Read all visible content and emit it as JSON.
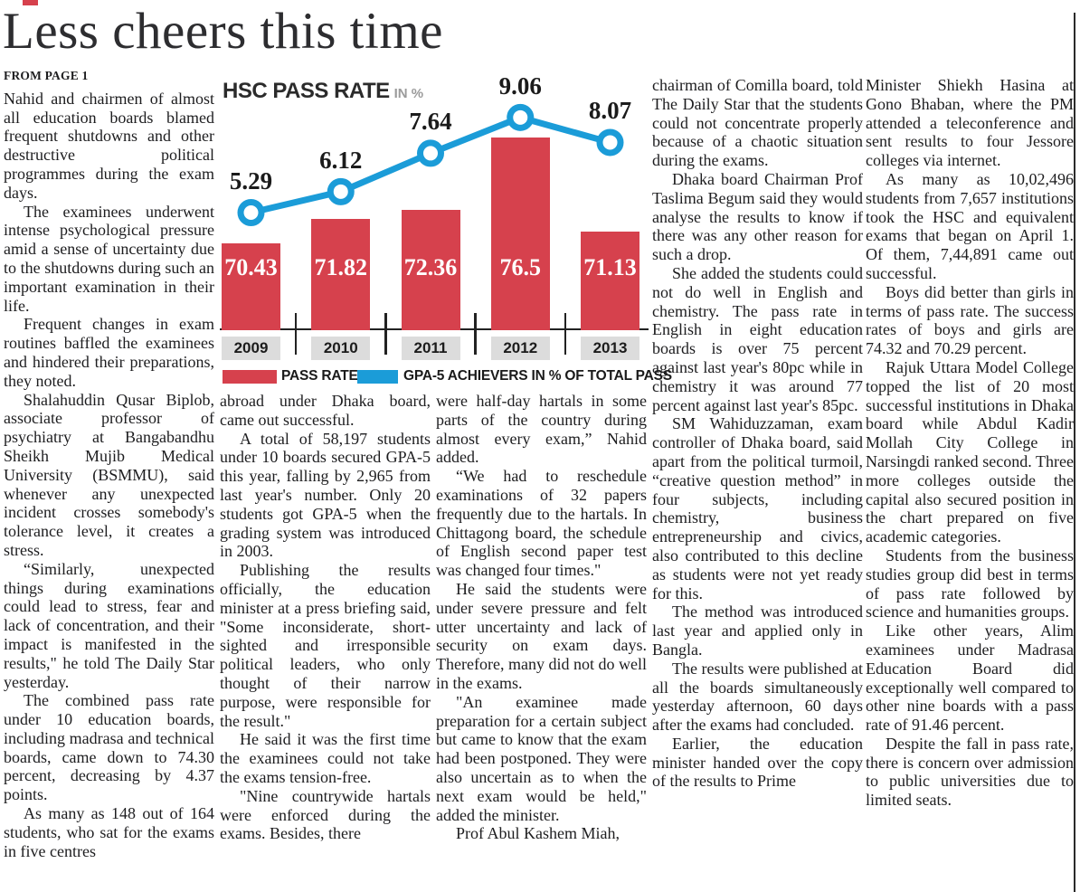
{
  "page": {
    "headline": "Less cheers this time",
    "kicker": "FROM PAGE 1",
    "accent_red": "#d6414d",
    "accent_blue": "#1b9cd8"
  },
  "chart_data": {
    "type": "bar",
    "title": "HSC PASS RATE",
    "title_suffix": "IN %",
    "categories": [
      "2009",
      "2010",
      "2011",
      "2012",
      "2013"
    ],
    "series": [
      {
        "name": "PASS RATE",
        "type": "bar",
        "color": "#d6414d",
        "values": [
          70.43,
          71.82,
          72.36,
          76.5,
          71.13
        ]
      },
      {
        "name": "GPA-5 ACHIEVERS IN % OF TOTAL PASS",
        "type": "line",
        "color": "#1b9cd8",
        "values": [
          5.29,
          6.12,
          7.64,
          9.06,
          8.07
        ]
      }
    ],
    "value_labels": true,
    "legend_position": "bottom",
    "grid": false,
    "ylim_bar": [
      65.5,
      80
    ],
    "ylim_line": [
      4,
      10
    ]
  },
  "columns": [
    {
      "paragraphs": [
        "Nahid and chairmen of almost all education boards blamed frequent shutdowns and other destructive political programmes during the exam days.",
        "The examinees underwent intense psychological pressure amid a sense of uncertainty due to the shutdowns during such an important examination in their life.",
        "Frequent changes in exam routines baffled the examinees and hindered their preparations, they noted.",
        "Shalahuddin Qusar Biplob, associate professor of psychiatry at Bangabandhu Sheikh Mujib Medical University (BSMMU), said whenever any unexpected incident crosses somebody's tolerance level, it creates a stress.",
        "“Similarly, unexpected things during examinations could lead to stress, fear and lack of concentration, and their impact is manifested in the results,\" he told The Daily Star yesterday.",
        "The combined pass rate under 10 education boards, including madrasa and technical boards, came down to 74.30 percent, decreasing by 4.37 points.",
        "As many as 148 out of 164 students, who sat for the exams in five centres"
      ]
    },
    {
      "paragraphs": [
        "abroad under Dhaka board, came out successful.",
        "A total of 58,197 students under 10 boards secured GPA-5 this year, falling by 2,965 from last year's number. Only 20 students got GPA-5 when the grading system was introduced in 2003.",
        "Publishing the results officially, the education minister at a press briefing said, \"Some inconsiderate, short-sighted and irresponsible political leaders, who only thought of their narrow purpose, were responsible for the result.\"",
        "He said it was the first time the examinees could not take the exams tension-free.",
        "\"Nine countrywide hartals were enforced during the exams. Besides, there"
      ]
    },
    {
      "paragraphs": [
        "were half-day hartals in some parts of the country during almost every exam,” Nahid added.",
        "“We had to reschedule examinations of 32 papers frequently due to the hartals. In Chittagong board, the schedule of English second paper test was changed four times.\"",
        "He said the students were under severe pressure and felt utter uncertainty and lack of security on exam days. Therefore, many did not do well in the exams.",
        "\"An examinee made preparation for a certain subject but came to know that the exam had been postponed. They were also uncertain as to when the next exam would be held,\" added the minister.",
        "Prof Abul Kashem Miah,"
      ]
    },
    {
      "paragraphs": [
        "chairman of Comilla board, told The Daily Star that the students could not concentrate properly because of a chaotic situation during the exams.",
        "Dhaka board Chairman Prof Taslima Begum said they would analyse the results to know if there was any other reason for such a drop.",
        "She added the students could not do well in English and chemistry. The pass rate in English in eight education boards is over 75 percent against last year's 80pc while in chemistry it was around 77 percent against last year's 85pc.",
        "SM Wahiduzzaman, exam controller of Dhaka board, said apart from the political turmoil, “creative question method” in four subjects, including chemistry, business entrepreneurship and civics, also contributed to this decline as students were not yet ready for this.",
        "The method was introduced last year and applied only in Bangla.",
        "The results were published at all the boards simultaneously yesterday afternoon, 60 days after the exams had concluded.",
        "Earlier, the education minister handed over the copy of the results to Prime"
      ]
    },
    {
      "paragraphs": [
        "Minister Shiekh Hasina at Gono Bhaban, where the PM attended a teleconference and sent results to four Jessore colleges via internet.",
        "As many as 10,02,496 students from 7,657 institutions took the HSC and equivalent exams that began on April 1. Of them, 7,44,891 came out successful.",
        "Boys did better than girls in terms of pass rate. The success rates of boys and girls are 74.32 and 70.29 percent.",
        "Rajuk Uttara Model College topped the list of 20 most successful institutions in Dhaka board while Abdul Kadir Mollah City College in Narsingdi ranked second. Three more colleges outside the capital also secured position in the chart prepared on five academic categories.",
        "Students from the business studies group did best in terms of pass rate followed by science and humanities groups.",
        "Like other years, Alim examinees under Madrasa Education Board did exceptionally well compared to other nine boards with a pass rate of 91.46 percent.",
        "Despite the fall in pass rate, there is concern over admission to public universities due to limited seats."
      ]
    }
  ]
}
